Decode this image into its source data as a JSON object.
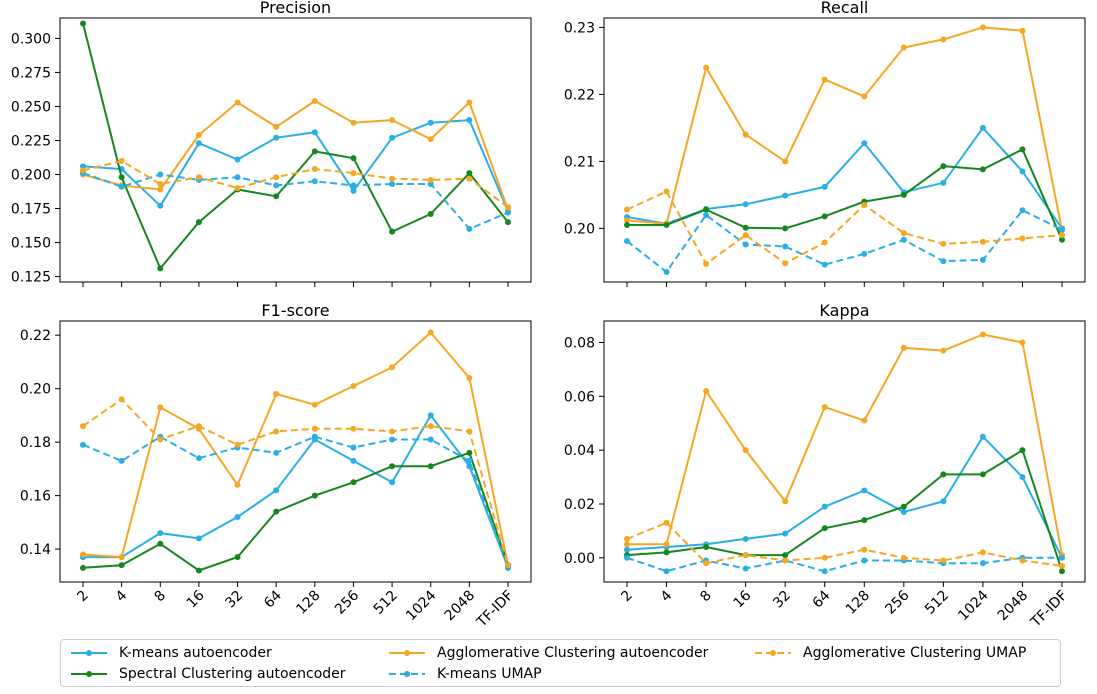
{
  "chart_data": [
    {
      "type": "line",
      "title": "Precision",
      "categories": [
        "2",
        "4",
        "8",
        "16",
        "32",
        "64",
        "128",
        "256",
        "512",
        "1024",
        "2048",
        "TF-IDF"
      ],
      "yticks": [
        "0.125",
        "0.150",
        "0.175",
        "0.200",
        "0.225",
        "0.250",
        "0.275",
        "0.300"
      ],
      "ytick_values": [
        0.125,
        0.15,
        0.175,
        0.2,
        0.225,
        0.25,
        0.275,
        0.3
      ],
      "ylim": [
        0.121,
        0.315
      ],
      "show_xticklabels": false,
      "series": [
        {
          "name": "K-means autoencoder",
          "values": [
            0.206,
            0.204,
            0.177,
            0.223,
            0.211,
            0.227,
            0.231,
            0.188,
            0.227,
            0.238,
            0.24,
            0.173
          ]
        },
        {
          "name": "Spectral Clustering autoencoder",
          "values": [
            0.311,
            0.198,
            0.131,
            0.165,
            0.189,
            0.184,
            0.217,
            0.212,
            0.158,
            0.171,
            0.201,
            0.165
          ]
        },
        {
          "name": "Agglomerative Clustering autoencoder",
          "values": [
            0.2,
            0.192,
            0.189,
            0.229,
            0.253,
            0.235,
            0.254,
            0.238,
            0.24,
            0.226,
            0.253,
            0.174
          ]
        },
        {
          "name": "K-means UMAP",
          "values": [
            0.201,
            0.191,
            0.2,
            0.196,
            0.198,
            0.192,
            0.195,
            0.192,
            0.193,
            0.193,
            0.16,
            0.172
          ]
        },
        {
          "name": "Agglomerative Clustering UMAP",
          "values": [
            0.203,
            0.21,
            0.193,
            0.198,
            0.19,
            0.198,
            0.204,
            0.201,
            0.197,
            0.196,
            0.197,
            0.176
          ]
        }
      ]
    },
    {
      "type": "line",
      "title": "Recall",
      "categories": [
        "2",
        "4",
        "8",
        "16",
        "32",
        "64",
        "128",
        "256",
        "512",
        "1024",
        "2048",
        "TF-IDF"
      ],
      "yticks": [
        "0.20",
        "0.21",
        "0.22",
        "0.23"
      ],
      "ytick_values": [
        0.2,
        0.21,
        0.22,
        0.23
      ],
      "ylim": [
        0.192,
        0.2314
      ],
      "show_xticklabels": false,
      "series": [
        {
          "name": "K-means autoencoder",
          "values": [
            0.2017,
            0.2007,
            0.2029,
            0.2036,
            0.2049,
            0.2062,
            0.2127,
            0.2054,
            0.2068,
            0.215,
            0.2085,
            0.2
          ]
        },
        {
          "name": "Spectral Clustering autoencoder",
          "values": [
            0.2005,
            0.2005,
            0.2028,
            0.2001,
            0.2,
            0.2018,
            0.204,
            0.205,
            0.2093,
            0.2088,
            0.2118,
            0.1983
          ]
        },
        {
          "name": "Agglomerative Clustering autoencoder",
          "values": [
            0.2012,
            0.2007,
            0.224,
            0.214,
            0.21,
            0.2222,
            0.2197,
            0.227,
            0.2282,
            0.23,
            0.2295,
            0.1997
          ]
        },
        {
          "name": "K-means UMAP",
          "values": [
            0.1981,
            0.1935,
            0.202,
            0.1976,
            0.1973,
            0.1946,
            0.1962,
            0.1983,
            0.1951,
            0.1953,
            0.2027,
            0.1998
          ]
        },
        {
          "name": "Agglomerative Clustering UMAP",
          "values": [
            0.2028,
            0.2055,
            0.1947,
            0.199,
            0.1948,
            0.1979,
            0.2035,
            0.1993,
            0.1977,
            0.198,
            0.1985,
            0.199
          ]
        }
      ]
    },
    {
      "type": "line",
      "title": "F1-score",
      "categories": [
        "2",
        "4",
        "8",
        "16",
        "32",
        "64",
        "128",
        "256",
        "512",
        "1024",
        "2048",
        "TF-IDF"
      ],
      "yticks": [
        "0.14",
        "0.16",
        "0.18",
        "0.20",
        "0.22"
      ],
      "ytick_values": [
        0.14,
        0.16,
        0.18,
        0.2,
        0.22
      ],
      "ylim": [
        0.1277,
        0.2253
      ],
      "show_xticklabels": true,
      "series": [
        {
          "name": "K-means autoencoder",
          "values": [
            0.137,
            0.137,
            0.146,
            0.144,
            0.152,
            0.162,
            0.181,
            0.173,
            0.165,
            0.19,
            0.171,
            0.133
          ]
        },
        {
          "name": "Spectral Clustering autoencoder",
          "values": [
            0.133,
            0.134,
            0.142,
            0.132,
            0.137,
            0.154,
            0.16,
            0.165,
            0.171,
            0.171,
            0.176,
            0.134
          ]
        },
        {
          "name": "Agglomerative Clustering autoencoder",
          "values": [
            0.138,
            0.137,
            0.193,
            0.185,
            0.164,
            0.198,
            0.194,
            0.201,
            0.208,
            0.221,
            0.204,
            0.134
          ]
        },
        {
          "name": "K-means UMAP",
          "values": [
            0.179,
            0.173,
            0.182,
            0.174,
            0.178,
            0.176,
            0.182,
            0.178,
            0.181,
            0.181,
            0.173,
            0.133
          ]
        },
        {
          "name": "Agglomerative Clustering UMAP",
          "values": [
            0.186,
            0.196,
            0.181,
            0.186,
            0.179,
            0.184,
            0.185,
            0.185,
            0.184,
            0.186,
            0.184,
            0.134
          ]
        }
      ]
    },
    {
      "type": "line",
      "title": "Kappa",
      "categories": [
        "2",
        "4",
        "8",
        "16",
        "32",
        "64",
        "128",
        "256",
        "512",
        "1024",
        "2048",
        "TF-IDF"
      ],
      "yticks": [
        "0.00",
        "0.02",
        "0.04",
        "0.06",
        "0.08"
      ],
      "ytick_values": [
        0.0,
        0.02,
        0.04,
        0.06,
        0.08
      ],
      "ylim": [
        -0.009,
        0.088
      ],
      "show_xticklabels": true,
      "series": [
        {
          "name": "K-means autoencoder",
          "values": [
            0.003,
            0.004,
            0.005,
            0.007,
            0.009,
            0.019,
            0.025,
            0.017,
            0.021,
            0.045,
            0.03,
            0.0
          ]
        },
        {
          "name": "Spectral Clustering autoencoder",
          "values": [
            0.001,
            0.002,
            0.004,
            0.001,
            0.001,
            0.011,
            0.014,
            0.019,
            0.031,
            0.031,
            0.04,
            -0.005
          ]
        },
        {
          "name": "Agglomerative Clustering autoencoder",
          "values": [
            0.005,
            0.005,
            0.062,
            0.04,
            0.021,
            0.056,
            0.051,
            0.078,
            0.077,
            0.083,
            0.08,
            0.001
          ]
        },
        {
          "name": "K-means UMAP",
          "values": [
            0.0,
            -0.005,
            -0.001,
            -0.004,
            -0.001,
            -0.005,
            -0.001,
            -0.001,
            -0.002,
            -0.002,
            0.0,
            0.0
          ]
        },
        {
          "name": "Agglomerative Clustering UMAP",
          "values": [
            0.007,
            0.013,
            -0.002,
            0.001,
            -0.001,
            0.0,
            0.003,
            0.0,
            -0.001,
            0.002,
            -0.001,
            -0.003
          ]
        }
      ]
    }
  ],
  "legend": [
    {
      "name": "K-means autoencoder",
      "color": "#29aee6",
      "dashed": false
    },
    {
      "name": "Agglomerative Clustering autoencoder",
      "color": "#f5a623",
      "dashed": false
    },
    {
      "name": "Agglomerative Clustering UMAP",
      "color": "#f5a623",
      "dashed": true
    },
    {
      "name": "Spectral Clustering autoencoder",
      "color": "#16861f",
      "dashed": false
    },
    {
      "name": "K-means UMAP",
      "color": "#29aee6",
      "dashed": true
    }
  ],
  "series_styles": {
    "K-means autoencoder": {
      "color": "#29aee6",
      "dashed": false
    },
    "Spectral Clustering autoencoder": {
      "color": "#16861f",
      "dashed": false
    },
    "Agglomerative Clustering autoencoder": {
      "color": "#f5a623",
      "dashed": false
    },
    "K-means UMAP": {
      "color": "#29aee6",
      "dashed": true
    },
    "Agglomerative Clustering UMAP": {
      "color": "#f5a623",
      "dashed": true
    }
  }
}
